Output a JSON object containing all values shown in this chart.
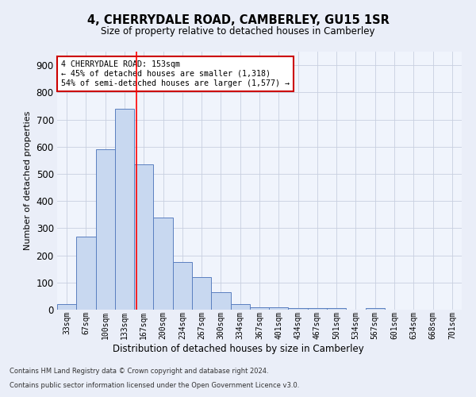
{
  "title": "4, CHERRYDALE ROAD, CAMBERLEY, GU15 1SR",
  "subtitle": "Size of property relative to detached houses in Camberley",
  "xlabel": "Distribution of detached houses by size in Camberley",
  "ylabel": "Number of detached properties",
  "bin_labels": [
    "33sqm",
    "67sqm",
    "100sqm",
    "133sqm",
    "167sqm",
    "200sqm",
    "234sqm",
    "267sqm",
    "300sqm",
    "334sqm",
    "367sqm",
    "401sqm",
    "434sqm",
    "467sqm",
    "501sqm",
    "534sqm",
    "567sqm",
    "601sqm",
    "634sqm",
    "668sqm",
    "701sqm"
  ],
  "bar_values": [
    20,
    270,
    590,
    740,
    535,
    340,
    175,
    120,
    65,
    20,
    10,
    10,
    5,
    5,
    5,
    0,
    5,
    0,
    0,
    0,
    0
  ],
  "bar_color": "#c8d8f0",
  "bar_edge_color": "#5a7fc0",
  "red_line_x": 3.62,
  "annotation_title": "4 CHERRYDALE ROAD: 153sqm",
  "annotation_line1": "← 45% of detached houses are smaller (1,318)",
  "annotation_line2": "54% of semi-detached houses are larger (1,577) →",
  "annotation_box_color": "#ffffff",
  "annotation_box_edge": "#cc0000",
  "footnote1": "Contains HM Land Registry data © Crown copyright and database right 2024.",
  "footnote2": "Contains public sector information licensed under the Open Government Licence v3.0.",
  "bg_color": "#eaeef8",
  "plot_bg_color": "#f0f4fc",
  "grid_color": "#c8d0e0",
  "ylim": [
    0,
    950
  ],
  "yticks": [
    0,
    100,
    200,
    300,
    400,
    500,
    600,
    700,
    800,
    900
  ]
}
